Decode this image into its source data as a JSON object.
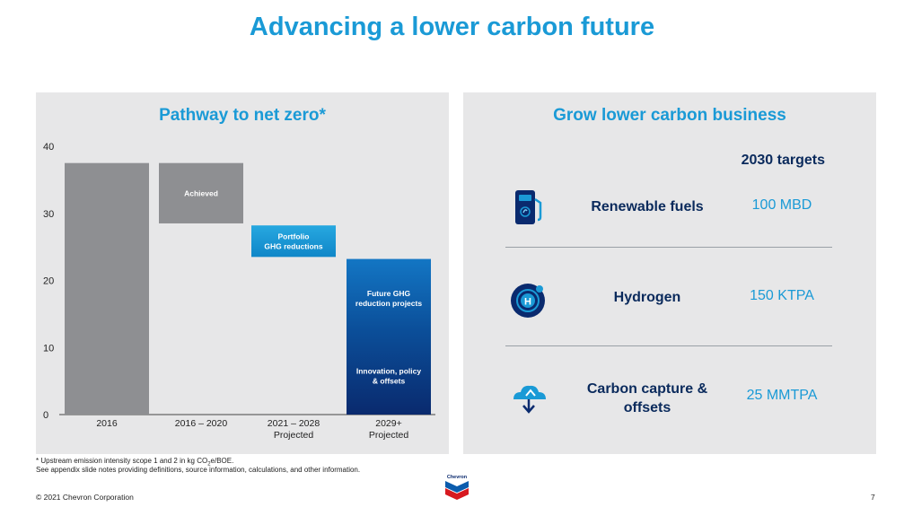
{
  "slide_title": "Advancing a lower carbon future",
  "left_panel": {
    "title": "Pathway to net zero*"
  },
  "chart_data": {
    "type": "bar",
    "subtype": "waterfall",
    "ylim": [
      0,
      40
    ],
    "yticks": [
      0,
      10,
      20,
      30,
      40
    ],
    "grid": false,
    "categories": [
      "2016",
      "2016 – 2020",
      "2021 – 2028\nProjected",
      "2029+\nProjected"
    ],
    "category_labels": [
      [
        "2016"
      ],
      [
        "2016 – 2020"
      ],
      [
        "2021 – 2028",
        "Projected"
      ],
      [
        "2029+",
        "Projected"
      ]
    ],
    "bars": [
      {
        "category": "2016",
        "segments": [
          {
            "bottom": 0,
            "top": 37.5,
            "label": [],
            "color": "#8e8f92"
          }
        ]
      },
      {
        "category": "2016 – 2020",
        "segments": [
          {
            "bottom": 28.5,
            "top": 37.5,
            "label": [
              "Achieved"
            ],
            "color": "#8e8f92"
          }
        ]
      },
      {
        "category": "2021 – 2028 Projected",
        "segments": [
          {
            "bottom": 23.5,
            "top": 28.2,
            "label": [
              "Portfolio",
              "GHG reductions"
            ],
            "color": "#1a9ad6"
          }
        ]
      },
      {
        "category": "2029+ Projected",
        "segments": [
          {
            "bottom": 11.5,
            "top": 23.2,
            "label": [
              "Future GHG",
              "reduction projects"
            ],
            "color": "#0b5cad"
          },
          {
            "bottom": 0,
            "top": 11.5,
            "label": [
              "Innovation, policy",
              "& offsets"
            ],
            "color": "#0a2a6e"
          }
        ]
      }
    ]
  },
  "right_panel": {
    "title": "Grow lower carbon business",
    "targets_header": "2030 targets",
    "rows": [
      {
        "icon": "fuel-pump-icon",
        "name": "Renewable fuels",
        "value": "100 MBD"
      },
      {
        "icon": "hydrogen-icon",
        "name": "Hydrogen",
        "value": "150 KTPA"
      },
      {
        "icon": "carbon-capture-icon",
        "name": "Carbon capture & offsets",
        "name_lines": [
          "Carbon capture &",
          "offsets"
        ],
        "value": "25 MMTPA"
      }
    ]
  },
  "footnotes": {
    "line1_prefix": "* Upstream emission intensity scope 1 and 2 in kg CO",
    "line1_sub": "2",
    "line1_suffix": "e/BOE.",
    "line2": "See appendix slide notes providing definitions, source information, calculations, and other information."
  },
  "logo_text": "Chevron",
  "copyright": "© 2021 Chevron Corporation",
  "page_number": "7",
  "colors": {
    "accent": "#1a9ad6",
    "navy": "#0a2a5c",
    "panel_bg": "#e7e7e8",
    "bar_gray": "#8e8f92"
  }
}
